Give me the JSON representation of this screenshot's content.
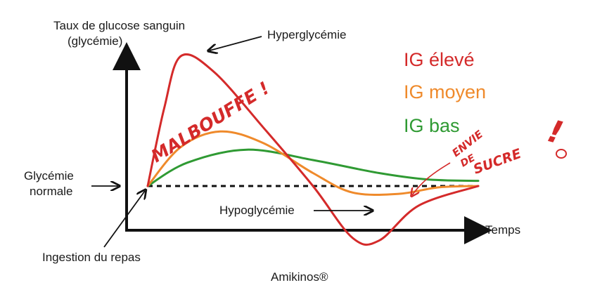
{
  "chart_data": {
    "type": "line",
    "ylabel_line1": "Taux de glucose sanguin",
    "ylabel_line2": "(glycémie)",
    "xlabel": "Temps",
    "baseline_label_line1": "Glycémie",
    "baseline_label_line2": "normale",
    "annotations": {
      "hyper": "Hyperglycémie",
      "hypo": "Hypoglycémie",
      "ingestion": "Ingestion du repas"
    },
    "handwritten": {
      "malbouffe": "MALBOUFFE !",
      "envie_l1": "ENVIE",
      "envie_l2": "DE",
      "envie_l3": "SUCRE",
      "smiley": "!"
    },
    "legend": "right",
    "colors": {
      "high": "#d42a2a",
      "medium": "#ef8a2b",
      "low": "#2f9a33",
      "baseline": "#111111"
    },
    "series": [
      {
        "name": "IG élevé",
        "color": "#d42a2a",
        "points": [
          [
            0,
            0
          ],
          [
            0.05,
            0.6
          ],
          [
            0.1,
            1.0
          ],
          [
            0.2,
            0.88
          ],
          [
            0.35,
            0.45
          ],
          [
            0.5,
            0.0
          ],
          [
            0.62,
            -0.4
          ],
          [
            0.7,
            -0.42
          ],
          [
            0.82,
            -0.15
          ],
          [
            1,
            0
          ]
        ]
      },
      {
        "name": "IG moyen",
        "color": "#ef8a2b",
        "points": [
          [
            0,
            0
          ],
          [
            0.1,
            0.3
          ],
          [
            0.22,
            0.42
          ],
          [
            0.35,
            0.33
          ],
          [
            0.5,
            0.1
          ],
          [
            0.62,
            -0.05
          ],
          [
            0.76,
            -0.06
          ],
          [
            0.88,
            -0.01
          ],
          [
            1,
            0
          ]
        ]
      },
      {
        "name": "IG bas",
        "color": "#2f9a33",
        "points": [
          [
            0,
            0
          ],
          [
            0.12,
            0.18
          ],
          [
            0.3,
            0.28
          ],
          [
            0.5,
            0.2
          ],
          [
            0.7,
            0.1
          ],
          [
            0.85,
            0.05
          ],
          [
            1,
            0.04
          ]
        ]
      }
    ],
    "baseline_y": 0
  },
  "footer": "Amikinos®"
}
